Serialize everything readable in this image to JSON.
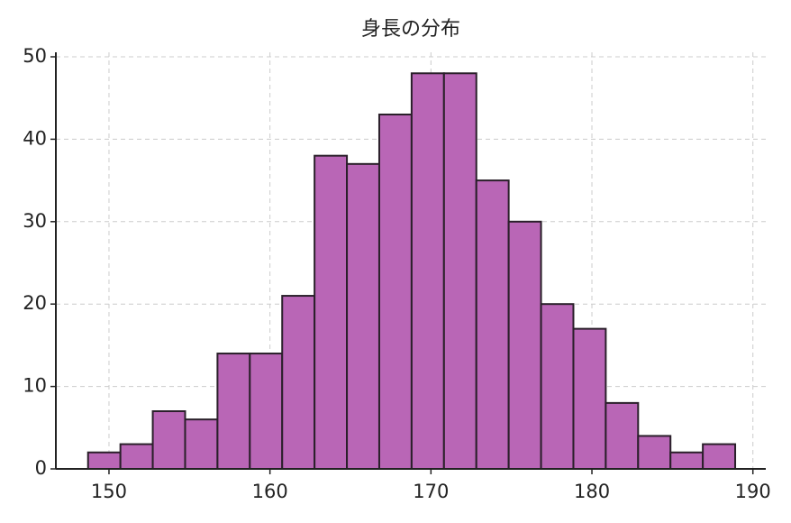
{
  "chart_data": {
    "type": "histogram",
    "title": "身長の分布",
    "bins": [
      148.7,
      150.71,
      152.72,
      154.73,
      156.74,
      158.75,
      160.76,
      162.77,
      164.78,
      166.79,
      168.8,
      170.81,
      172.82,
      174.83,
      176.84,
      178.85,
      180.86,
      182.87,
      184.88,
      186.89,
      188.9
    ],
    "values": [
      2,
      3,
      7,
      6,
      14,
      14,
      21,
      38,
      37,
      43,
      48,
      48,
      35,
      30,
      20,
      17,
      8,
      4,
      2,
      3
    ],
    "color": "#b966b6",
    "edgecolor": "#2a1f2a",
    "xlim": [
      146.7,
      190.8
    ],
    "xticks": [
      150,
      160,
      170,
      180,
      190
    ],
    "ylim": [
      0,
      50
    ],
    "yticks": [
      0,
      10,
      20,
      30,
      40,
      50
    ],
    "grid": true
  }
}
